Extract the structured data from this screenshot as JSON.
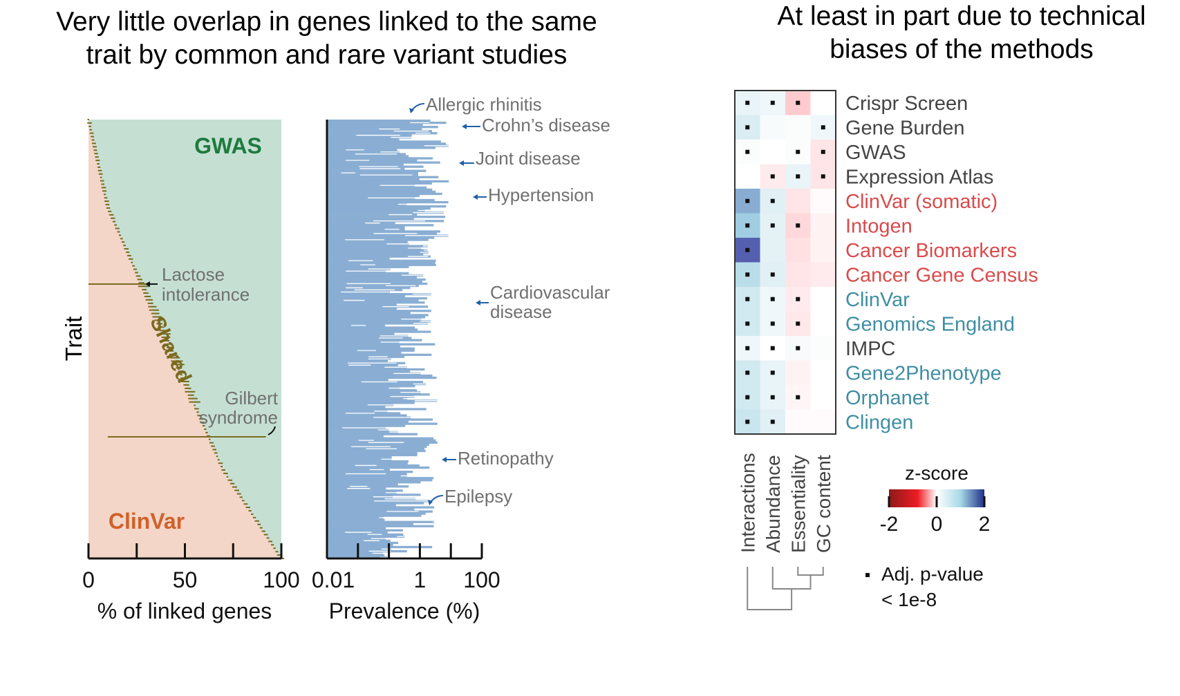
{
  "titles": {
    "left": "Very little overlap in genes linked to the same trait by common and rare variant studies",
    "left_line1": "Very little overlap in genes linked to the same",
    "left_line2": "trait by common and rare variant studies",
    "right_line1": "At least in part due to technical",
    "right_line2": "biases of the methods"
  },
  "colors": {
    "gwas_bg": "#c5e0d3",
    "clinvar_bg": "#f3d6c8",
    "shared": "#7a6a1e",
    "gwas_text": "#1e7a3e",
    "clinvar_text": "#d0612a",
    "prevalence_bar": "#8aaed3",
    "annotation_text": "#707070",
    "arrow_blue": "#1f5fa8",
    "label_red": "#d94b4b",
    "label_teal": "#3f8ea3",
    "label_gray": "#444444"
  },
  "chart_data": [
    {
      "type": "area",
      "title": "",
      "xlabel": "% of linked genes",
      "ylabel": "Trait",
      "xlim": [
        0,
        100
      ],
      "xticks": [
        "0",
        "50",
        "100"
      ],
      "minor_xticks": [
        0,
        25,
        50,
        75,
        100
      ],
      "region_labels": {
        "top": "GWAS",
        "middle": "Shared",
        "bottom": "ClinVar"
      },
      "boundary_percent_clinvar": [
        0,
        1,
        2,
        3,
        4,
        5,
        6,
        7,
        8,
        9,
        10,
        12,
        14,
        16,
        18,
        20,
        22,
        24,
        26,
        28,
        30,
        32,
        34,
        36,
        38,
        40,
        42,
        44,
        46,
        48,
        50,
        52,
        54,
        56,
        58,
        60,
        62,
        64,
        66,
        68,
        70,
        73,
        76,
        79,
        82,
        85,
        88,
        91,
        94,
        97,
        100
      ],
      "shared_wide_segments": [
        {
          "trait": "Lactose intolerance",
          "from": 0,
          "to": 30
        },
        {
          "trait": "Gilbert syndrome",
          "from": 10,
          "to": 92
        }
      ],
      "annotations": [
        "Lactose intolerance",
        "Gilbert syndrome"
      ]
    },
    {
      "type": "bar",
      "orientation": "horizontal",
      "xlabel": "Prevalence (%)",
      "xscale": "log",
      "xlim": [
        0.001,
        100
      ],
      "xticks": [
        "0.01",
        "1",
        "100"
      ],
      "annotations": [
        {
          "label": "Allergic rhinitis",
          "prevalence": 1
        },
        {
          "label": "Crohn’s disease",
          "prevalence": 40
        },
        {
          "label": "Joint disease",
          "prevalence": 40
        },
        {
          "label": "Hypertension",
          "prevalence": 70
        },
        {
          "label": "Cardiovascular disease",
          "prevalence": 70
        },
        {
          "label": "Retinopathy",
          "prevalence": 20
        },
        {
          "label": "Epilepsy",
          "prevalence": 1
        }
      ]
    },
    {
      "type": "heatmap",
      "title": "z-score",
      "columns": [
        "Interactions",
        "Abundance",
        "Essentiality",
        "GC content"
      ],
      "rows": [
        {
          "label": "Crispr Screen",
          "group": "gray",
          "z": [
            0.3,
            0.2,
            -0.8,
            0.0
          ],
          "sig": [
            true,
            true,
            true,
            false
          ]
        },
        {
          "label": "Gene Burden",
          "group": "gray",
          "z": [
            0.5,
            0.1,
            0.05,
            0.2
          ],
          "sig": [
            true,
            false,
            false,
            true
          ]
        },
        {
          "label": "GWAS",
          "group": "gray",
          "z": [
            0.05,
            0.0,
            0.05,
            -0.4
          ],
          "sig": [
            true,
            false,
            true,
            true
          ]
        },
        {
          "label": "Expression Atlas",
          "group": "gray",
          "z": [
            0.0,
            -0.3,
            0.3,
            -0.4
          ],
          "sig": [
            false,
            true,
            true,
            true
          ]
        },
        {
          "label": "ClinVar (somatic)",
          "group": "red",
          "z": [
            1.3,
            0.4,
            -0.4,
            -0.05
          ],
          "sig": [
            true,
            true,
            false,
            false
          ]
        },
        {
          "label": "Intogen",
          "group": "red",
          "z": [
            1.0,
            0.35,
            -0.6,
            -0.2
          ],
          "sig": [
            true,
            true,
            true,
            false
          ]
        },
        {
          "label": "Cancer Biomarkers",
          "group": "red",
          "z": [
            2.0,
            0.35,
            -0.45,
            -0.2
          ],
          "sig": [
            true,
            false,
            false,
            false
          ]
        },
        {
          "label": "Cancer Gene Census",
          "group": "red",
          "z": [
            0.9,
            0.4,
            -0.4,
            -0.3
          ],
          "sig": [
            true,
            true,
            false,
            false
          ]
        },
        {
          "label": "ClinVar",
          "group": "teal",
          "z": [
            0.6,
            0.2,
            -0.3,
            0.0
          ],
          "sig": [
            true,
            true,
            true,
            false
          ]
        },
        {
          "label": "Genomics England",
          "group": "teal",
          "z": [
            0.6,
            0.2,
            -0.35,
            0.0
          ],
          "sig": [
            true,
            true,
            true,
            false
          ]
        },
        {
          "label": "IMPC",
          "group": "gray",
          "z": [
            0.2,
            0.0,
            0.1,
            0.05
          ],
          "sig": [
            true,
            true,
            true,
            false
          ]
        },
        {
          "label": "Gene2Phenotype",
          "group": "teal",
          "z": [
            0.6,
            0.3,
            -0.2,
            0.0
          ],
          "sig": [
            true,
            true,
            false,
            false
          ]
        },
        {
          "label": "Orphanet",
          "group": "teal",
          "z": [
            0.6,
            0.3,
            -0.15,
            0.0
          ],
          "sig": [
            true,
            true,
            true,
            false
          ]
        },
        {
          "label": "Clingen",
          "group": "teal",
          "z": [
            0.7,
            0.4,
            -0.05,
            -0.05
          ],
          "sig": [
            true,
            true,
            false,
            false
          ]
        }
      ],
      "colorbar": {
        "min": -2,
        "max": 2,
        "ticks": [
          "-2",
          "0",
          "2"
        ],
        "low": "#8b1a1a",
        "mid": "#ffffff",
        "high": "#1f2f8a"
      },
      "legend": {
        "marker_label_line1": "Adj. p-value",
        "marker_label_line2": "< 1e-8"
      },
      "dendrogram": "columns"
    }
  ]
}
